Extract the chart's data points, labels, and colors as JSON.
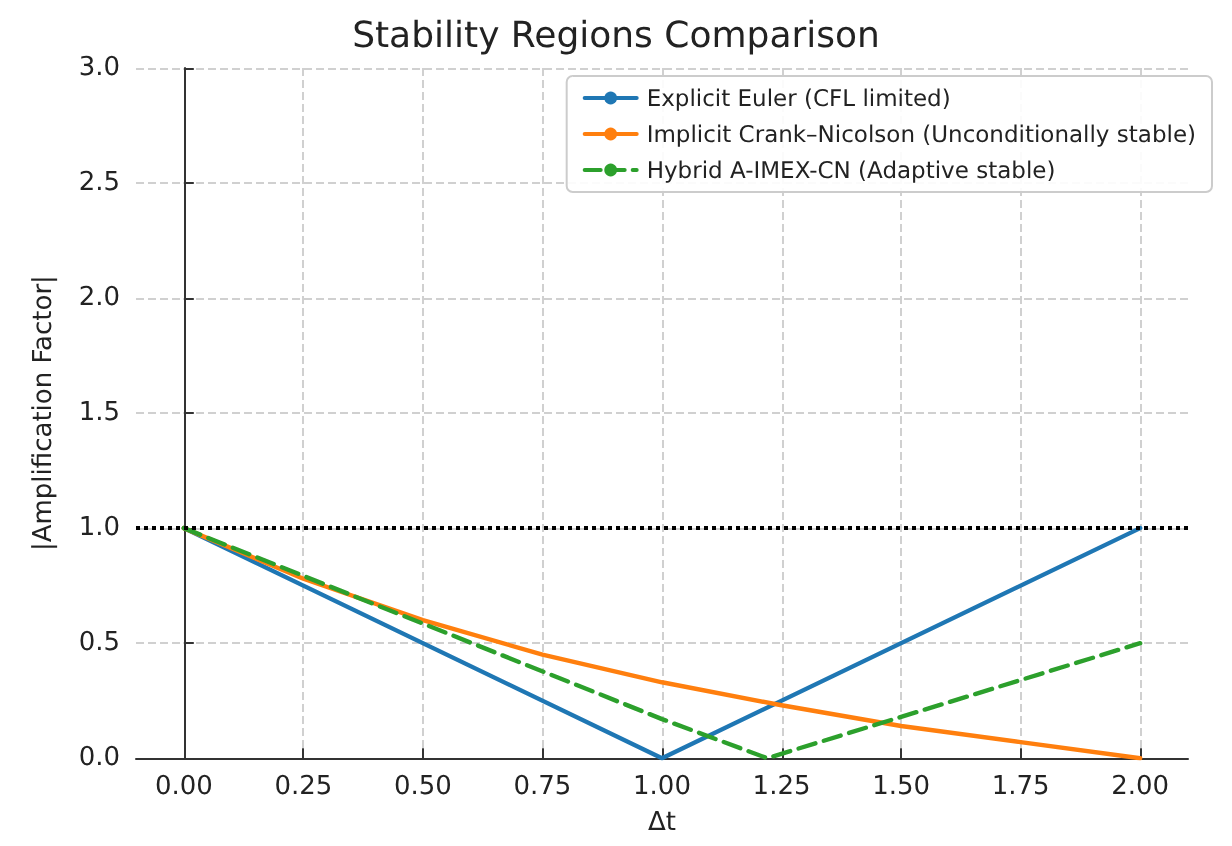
{
  "chart_data": {
    "type": "line",
    "title": "Stability Regions Comparison",
    "xlabel": "Δt",
    "ylabel": "|Amplification Factor|",
    "xlim": [
      -0.1,
      2.1
    ],
    "xticks": [
      {
        "value": 0,
        "label": "0.00"
      },
      {
        "value": 0.25,
        "label": "0.25"
      },
      {
        "value": 0.5,
        "label": "0.50"
      },
      {
        "value": 0.75,
        "label": "0.75"
      },
      {
        "value": 1,
        "label": "1.00"
      },
      {
        "value": 1.25,
        "label": "1.25"
      },
      {
        "value": 1.5,
        "label": "1.50"
      },
      {
        "value": 1.75,
        "label": "1.75"
      },
      {
        "value": 2,
        "label": "2.00"
      }
    ],
    "ylim": [
      0,
      3
    ],
    "yticks": [
      {
        "value": 0,
        "label": "0.0"
      },
      {
        "value": 0.5,
        "label": "0.5"
      },
      {
        "value": 1,
        "label": "1.0"
      },
      {
        "value": 1.5,
        "label": "1.5"
      },
      {
        "value": 2,
        "label": "2.0"
      },
      {
        "value": 2.5,
        "label": "2.5"
      },
      {
        "value": 3,
        "label": "3.0"
      }
    ],
    "series": [
      {
        "name": "Explicit Euler (CFL limited)",
        "color": "#1f77b4",
        "x": [
          0,
          1,
          2
        ],
        "values": [
          1,
          0,
          1
        ],
        "line_style": "solid"
      },
      {
        "name": "Implicit Crank–Nicolson (Unconditionally stable)",
        "color": "#ff7f0e",
        "x": [
          0,
          0.25,
          0.5,
          0.75,
          1,
          1.25,
          1.5,
          1.75,
          2
        ],
        "values": [
          1,
          0.78,
          0.6,
          0.45,
          0.33,
          0.23,
          0.14,
          0.07,
          0
        ],
        "line_style": "solid"
      },
      {
        "name": "Hybrid A-IMEX-CN (Adaptive stable)",
        "color": "#2ca02c",
        "x": [
          0,
          1,
          1.22,
          2
        ],
        "values": [
          1,
          0.17,
          0,
          0.5
        ],
        "line_style": "dashed"
      }
    ],
    "ref_lines": [
      {
        "axis": "y",
        "value": 1,
        "color": "#000000",
        "line_style": "dotted"
      }
    ],
    "grid": true,
    "legend": "top right",
    "marker": "none"
  }
}
